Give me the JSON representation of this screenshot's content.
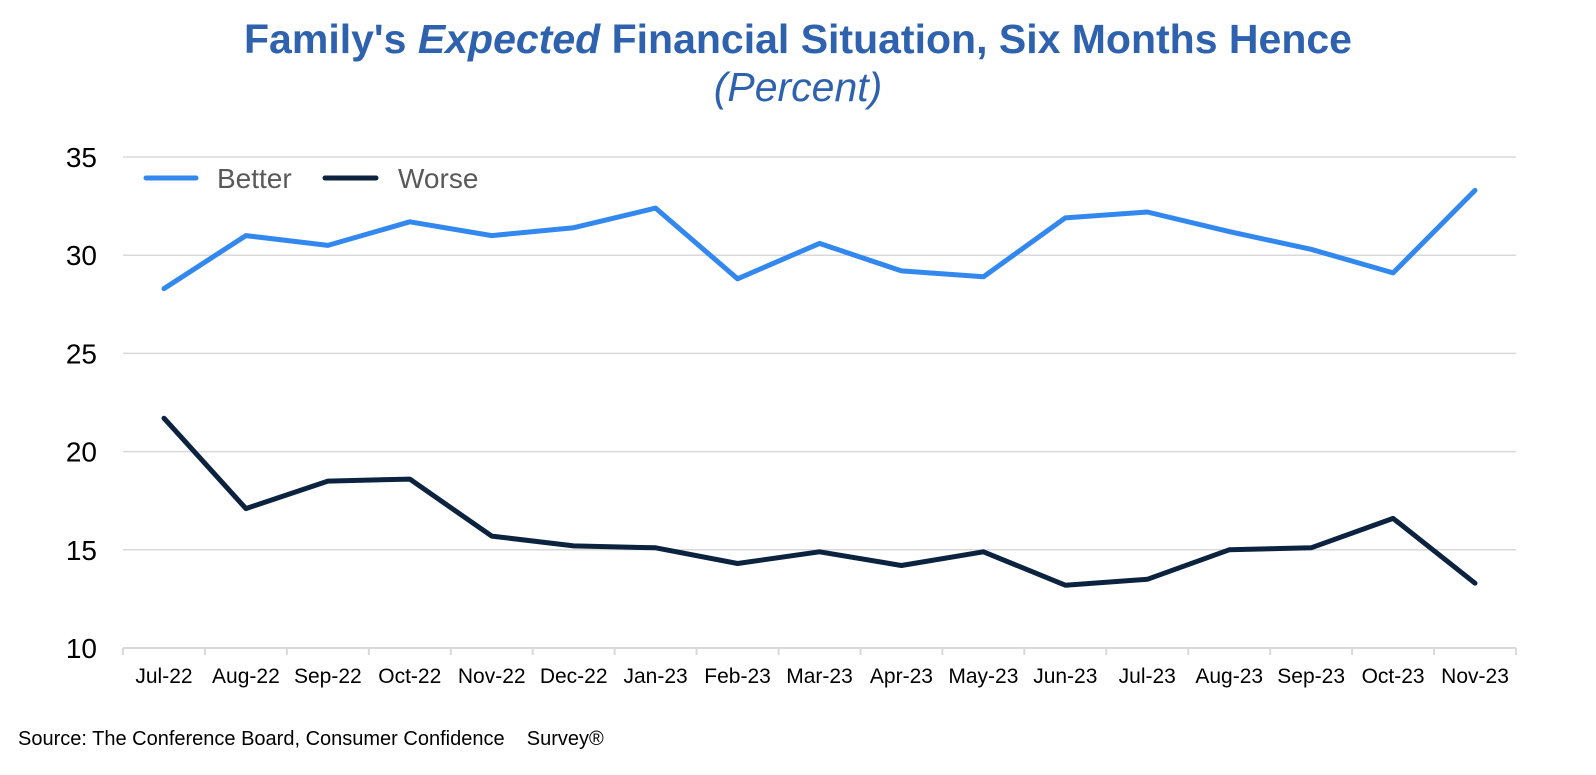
{
  "title": {
    "part1": "Family's",
    "part2": "Expected",
    "part3": "Financial Situation, Six Months Hence",
    "subtitle": "(Percent)"
  },
  "source": "Source: The Conference Board, Consumer Confidence    Survey®",
  "colors": {
    "title": "#2E62AE",
    "better": "#3388F0",
    "worse": "#0C2340",
    "grid": "#D9D9D9",
    "axis_text": "#000000"
  },
  "chart_data": {
    "type": "line",
    "categories": [
      "Jul-22",
      "Aug-22",
      "Sep-22",
      "Oct-22",
      "Nov-22",
      "Dec-22",
      "Jan-23",
      "Feb-23",
      "Mar-23",
      "Apr-23",
      "May-23",
      "Jun-23",
      "Jul-23",
      "Aug-23",
      "Sep-23",
      "Oct-23",
      "Nov-23"
    ],
    "series": [
      {
        "name": "Better",
        "color": "#3388F0",
        "values": [
          28.3,
          31.0,
          30.5,
          31.7,
          31.0,
          31.4,
          32.4,
          28.8,
          30.6,
          29.2,
          28.9,
          31.9,
          32.2,
          31.2,
          30.3,
          29.1,
          33.3
        ]
      },
      {
        "name": "Worse",
        "color": "#0C2340",
        "values": [
          21.7,
          17.1,
          18.5,
          18.6,
          15.7,
          15.2,
          15.1,
          14.3,
          14.9,
          14.2,
          14.9,
          13.2,
          13.5,
          15.0,
          15.1,
          16.6,
          13.3
        ]
      }
    ],
    "ylim": [
      10,
      35
    ],
    "yticks": [
      10,
      15,
      20,
      25,
      30,
      35
    ],
    "grid": true,
    "legend": "top-left"
  }
}
